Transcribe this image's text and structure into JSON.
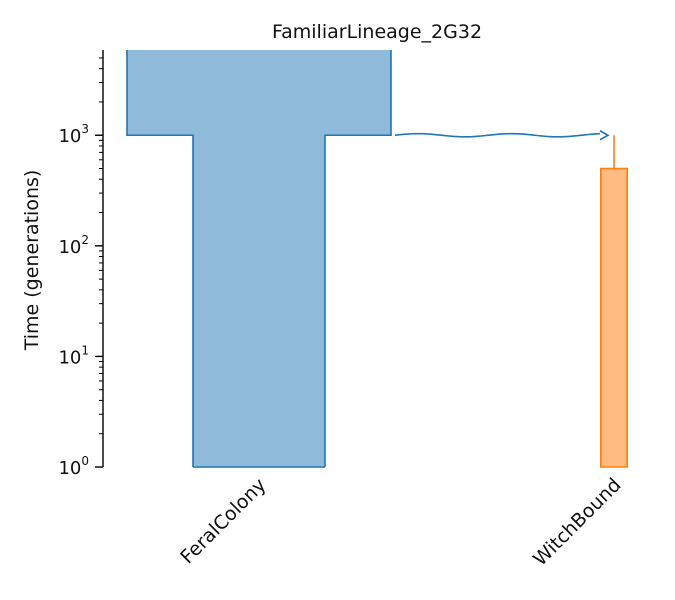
{
  "chart_data": {
    "type": "demography",
    "title": "FamiliarLineage_2G32",
    "ylabel": "Time (generations)",
    "xlabel": "",
    "yscale": "log",
    "ylim": [
      1,
      5900
    ],
    "yticks": [
      {
        "value": 1,
        "base": "10",
        "exp": "0"
      },
      {
        "value": 10,
        "base": "10",
        "exp": "1"
      },
      {
        "value": 100,
        "base": "10",
        "exp": "2"
      },
      {
        "value": 1000,
        "base": "10",
        "exp": "3"
      }
    ],
    "grid": false,
    "populations": [
      {
        "name": "FeralColony",
        "color": "#1f77b4",
        "fill": "#8fbad9",
        "epochs": [
          {
            "start_time": 1,
            "end_time": 1000,
            "size": 10000
          },
          {
            "start_time": 1000,
            "end_time": 5900,
            "size": 20000
          }
        ]
      },
      {
        "name": "WitchBound",
        "color": "#ff7f0e",
        "fill": "#ffbb82",
        "epochs": [
          {
            "start_time": 1,
            "end_time": 500,
            "size": 2000
          }
        ],
        "ancestral_line_until": 1000
      }
    ],
    "migrations": [
      {
        "source": "FeralColony",
        "dest": "WitchBound",
        "time": 1000,
        "color": "#1f77b4"
      }
    ]
  }
}
